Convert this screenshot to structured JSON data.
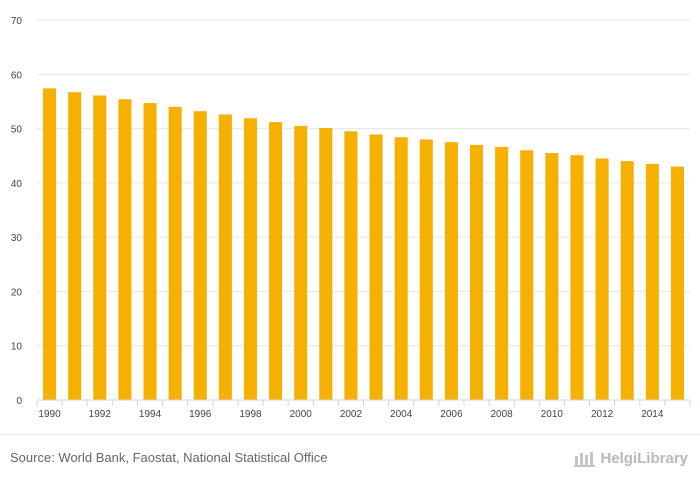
{
  "chart_data": {
    "type": "bar",
    "x": [
      1990,
      1991,
      1992,
      1993,
      1994,
      1995,
      1996,
      1997,
      1998,
      1999,
      2000,
      2001,
      2002,
      2003,
      2004,
      2005,
      2006,
      2007,
      2008,
      2009,
      2010,
      2011,
      2012,
      2013,
      2014,
      2015
    ],
    "x_tick_labels": [
      "1990",
      "1992",
      "1994",
      "1996",
      "1998",
      "2000",
      "2002",
      "2004",
      "2006",
      "2008",
      "2010",
      "2012",
      "2014"
    ],
    "values": [
      57.4,
      56.7,
      56.1,
      55.4,
      54.7,
      54.0,
      53.2,
      52.6,
      51.9,
      51.2,
      50.5,
      50.1,
      49.5,
      48.9,
      48.4,
      48.0,
      47.5,
      47.0,
      46.6,
      46.0,
      45.5,
      45.1,
      44.5,
      44.0,
      43.5,
      43.0
    ],
    "ylim": [
      0,
      70
    ],
    "y_ticks": [
      "0",
      "10",
      "20",
      "30",
      "40",
      "50",
      "60",
      "70"
    ],
    "bar_color": "#f5b000",
    "grid": true
  },
  "footer": {
    "source": "Source: World Bank, Faostat, National Statistical Office",
    "logo_text": "HelgiLibrary"
  }
}
